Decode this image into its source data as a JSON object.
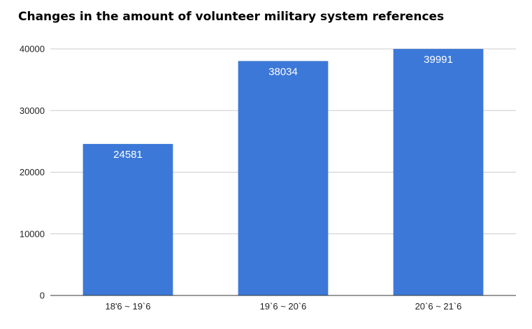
{
  "chart_data": {
    "type": "bar",
    "title": "Changes in the amount of volunteer military system references",
    "xlabel": "",
    "ylabel": "",
    "categories": [
      "18'6 ~ 19`6",
      "19`6 ~ 20`6",
      "20`6 ~ 21`6"
    ],
    "values": [
      24581,
      38034,
      39991
    ],
    "ylim": [
      0,
      40000
    ],
    "yticks": [
      0,
      10000,
      20000,
      30000,
      40000
    ],
    "grid": true,
    "legend": "none",
    "bar_color": "#3c78d8",
    "data_label_color": "#ffffff",
    "data_labels_visible": true
  }
}
